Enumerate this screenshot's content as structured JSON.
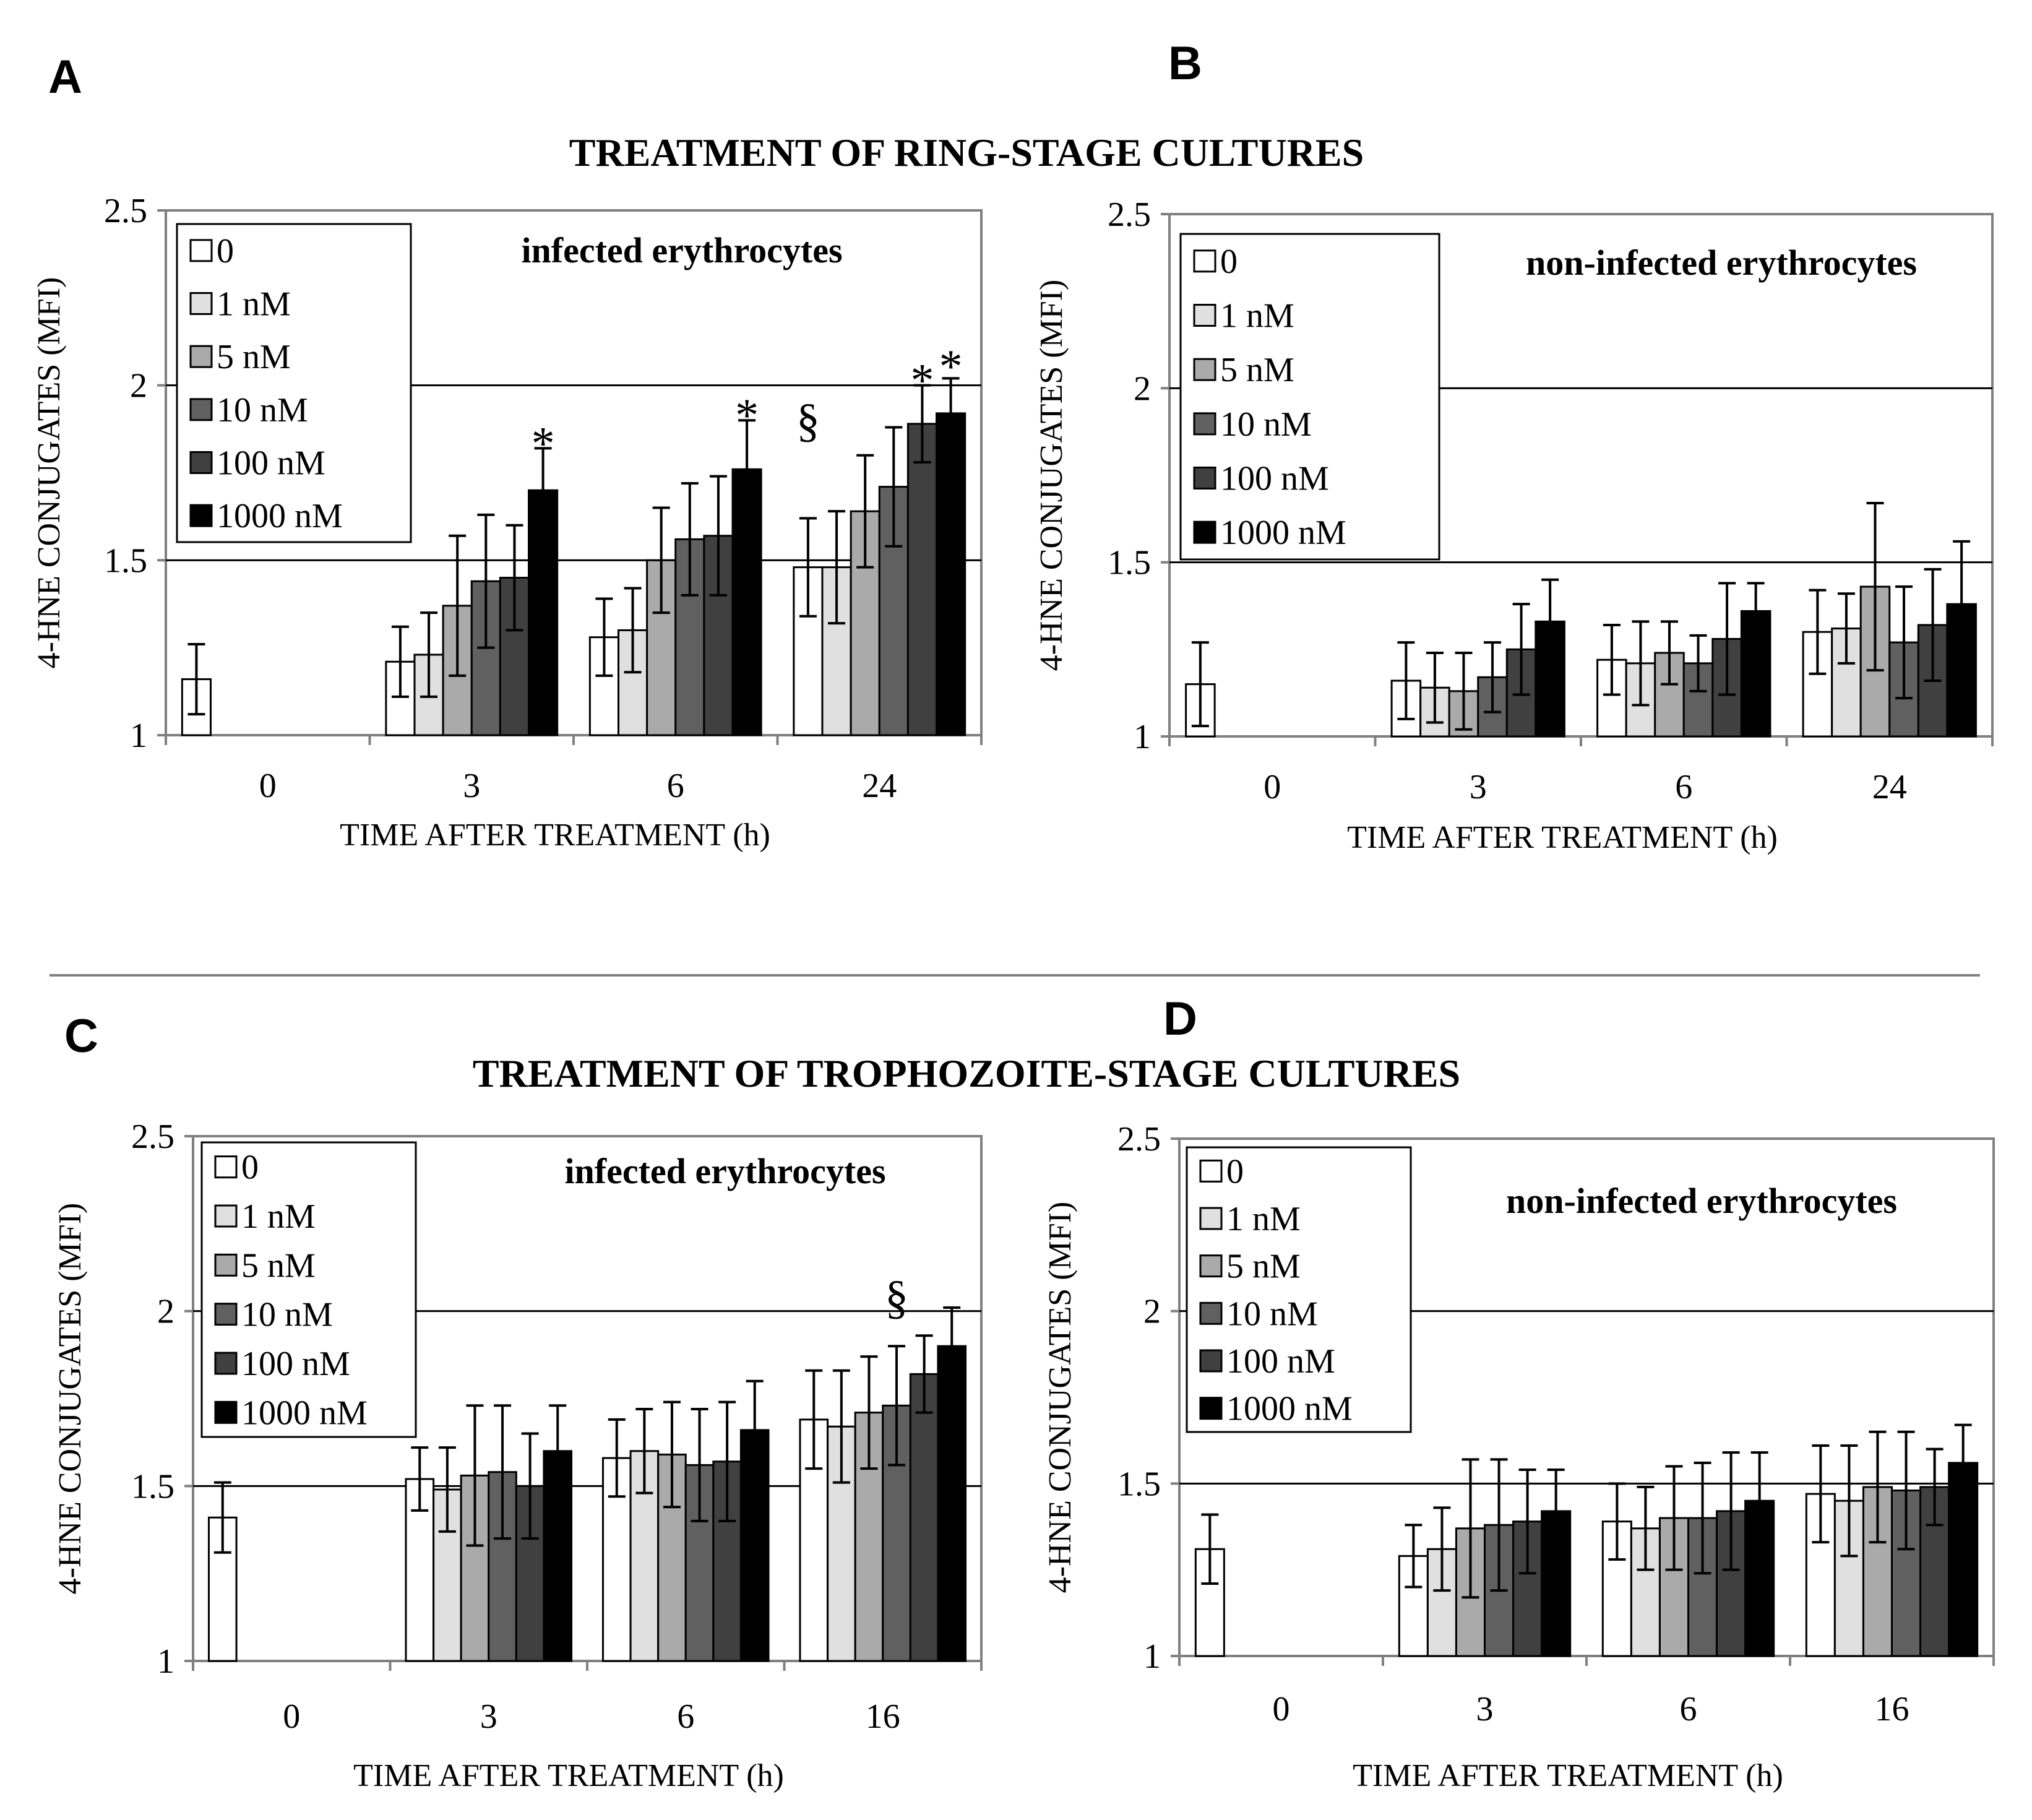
{
  "figure": {
    "letters": [
      "A",
      "B",
      "C",
      "D"
    ],
    "section_titles": [
      "TREATMENT OF RING-STAGE CULTURES",
      "TREATMENT OF TROPHOZOITE-STAGE  CULTURES"
    ]
  },
  "colors": {
    "series": [
      "#ffffff",
      "#e0e0e0",
      "#aaaaaa",
      "#606060",
      "#404040",
      "#000000"
    ],
    "axis": "#808080",
    "bar_stroke": "#000000"
  },
  "chart_data": [
    {
      "type": "bar",
      "title": "infected erythrocytes",
      "xlabel": "TIME AFTER TREATMENT  (h)",
      "ylabel": "4-HNE CONJUGATES  (MFI)",
      "ylim": [
        1,
        2.5
      ],
      "yticks": [
        "1",
        "1.5",
        "2",
        "2.5"
      ],
      "gridlines": [
        1.5,
        2
      ],
      "categories": [
        "0",
        "3",
        "6",
        "24"
      ],
      "legend_position": "top-left",
      "series": [
        {
          "name": "0",
          "values": [
            1.16,
            1.21,
            1.28,
            1.48
          ],
          "errors": [
            0.1,
            0.1,
            0.11,
            0.14
          ]
        },
        {
          "name": "1 nM",
          "values": [
            null,
            1.23,
            1.3,
            1.48
          ],
          "errors": [
            null,
            0.12,
            0.12,
            0.16
          ]
        },
        {
          "name": "5 nM",
          "values": [
            null,
            1.37,
            1.5,
            1.64
          ],
          "errors": [
            null,
            0.2,
            0.15,
            0.16
          ]
        },
        {
          "name": "10 nM",
          "values": [
            null,
            1.44,
            1.56,
            1.71
          ],
          "errors": [
            null,
            0.19,
            0.16,
            0.17
          ]
        },
        {
          "name": "100 nM",
          "values": [
            null,
            1.45,
            1.57,
            1.89
          ],
          "errors": [
            null,
            0.15,
            0.17,
            0.11
          ]
        },
        {
          "name": "1000 nM",
          "values": [
            null,
            1.7,
            1.76,
            1.92
          ],
          "errors": [
            null,
            0.12,
            0.14,
            0.1
          ]
        }
      ],
      "annotations": [
        {
          "text": "*",
          "category": "3",
          "series": "1000 nM",
          "y": 1.86
        },
        {
          "text": "*",
          "category": "6",
          "series": "1000 nM",
          "y": 1.94
        },
        {
          "text": "§",
          "category": "24",
          "series": "0",
          "y": 1.9
        },
        {
          "text": "*",
          "category": "24",
          "series": "100 nM",
          "y": 2.04
        },
        {
          "text": "*",
          "category": "24",
          "series": "1000 nM",
          "y": 2.08
        }
      ]
    },
    {
      "type": "bar",
      "title": "non-infected erythrocytes",
      "xlabel": "TIME AFTER TREATMENT  (h)",
      "ylabel": "4-HNE CONJUGATES  (MFI)",
      "ylim": [
        1,
        2.5
      ],
      "yticks": [
        "1",
        "1.5",
        "2",
        "2.5"
      ],
      "gridlines": [
        1.5,
        2
      ],
      "categories": [
        "0",
        "3",
        "6",
        "24"
      ],
      "legend_position": "top-left",
      "series": [
        {
          "name": "0",
          "values": [
            1.15,
            1.16,
            1.22,
            1.3
          ],
          "errors": [
            0.12,
            0.11,
            0.1,
            0.12
          ]
        },
        {
          "name": "1 nM",
          "values": [
            null,
            1.14,
            1.21,
            1.31
          ],
          "errors": [
            null,
            0.1,
            0.12,
            0.1
          ]
        },
        {
          "name": "5 nM",
          "values": [
            null,
            1.13,
            1.24,
            1.43
          ],
          "errors": [
            null,
            0.11,
            0.09,
            0.24
          ]
        },
        {
          "name": "10 nM",
          "values": [
            null,
            1.17,
            1.21,
            1.27
          ],
          "errors": [
            null,
            0.1,
            0.08,
            0.16
          ]
        },
        {
          "name": "100 nM",
          "values": [
            null,
            1.25,
            1.28,
            1.32
          ],
          "errors": [
            null,
            0.13,
            0.16,
            0.16
          ]
        },
        {
          "name": "1000 nM",
          "values": [
            null,
            1.33,
            1.36,
            1.38
          ],
          "errors": [
            null,
            0.12,
            0.08,
            0.18
          ]
        }
      ],
      "annotations": []
    },
    {
      "type": "bar",
      "title": "infected erythrocytes",
      "xlabel": "TIME AFTER TREATMENT  (h)",
      "ylabel": "4-HNE CONJUGATES  (MFI)",
      "ylim": [
        1,
        2.5
      ],
      "yticks": [
        "1",
        "1.5",
        "2",
        "2.5"
      ],
      "gridlines": [
        1.5,
        2
      ],
      "categories": [
        "0",
        "3",
        "6",
        "16"
      ],
      "legend_position": "top-left",
      "series": [
        {
          "name": "0",
          "values": [
            1.41,
            1.52,
            1.58,
            1.69
          ],
          "errors": [
            0.1,
            0.09,
            0.11,
            0.14
          ]
        },
        {
          "name": "1 nM",
          "values": [
            null,
            1.49,
            1.6,
            1.67
          ],
          "errors": [
            null,
            0.12,
            0.12,
            0.16
          ]
        },
        {
          "name": "5 nM",
          "values": [
            null,
            1.53,
            1.59,
            1.71
          ],
          "errors": [
            null,
            0.2,
            0.15,
            0.16
          ]
        },
        {
          "name": "10 nM",
          "values": [
            null,
            1.54,
            1.56,
            1.73
          ],
          "errors": [
            null,
            0.19,
            0.16,
            0.17
          ]
        },
        {
          "name": "100 nM",
          "values": [
            null,
            1.5,
            1.57,
            1.82
          ],
          "errors": [
            null,
            0.15,
            0.17,
            0.11
          ]
        },
        {
          "name": "1000 nM",
          "values": [
            null,
            1.6,
            1.66,
            1.9
          ],
          "errors": [
            null,
            0.13,
            0.14,
            0.11
          ]
        }
      ],
      "annotations": [
        {
          "text": "§",
          "category": "16",
          "series": "10 nM",
          "y": 2.04
        }
      ]
    },
    {
      "type": "bar",
      "title": "non-infected erythrocytes",
      "xlabel": "TIME AFTER TREATMENT  (h)",
      "ylabel": "4-HNE CONJUGATES  (MFI)",
      "ylim": [
        1,
        2.5
      ],
      "yticks": [
        "1",
        "1.5",
        "2",
        "2.5"
      ],
      "gridlines": [
        1.5,
        2
      ],
      "categories": [
        "0",
        "3",
        "6",
        "16"
      ],
      "legend_position": "top-left",
      "series": [
        {
          "name": "0",
          "values": [
            1.31,
            1.29,
            1.39,
            1.47
          ],
          "errors": [
            0.1,
            0.09,
            0.11,
            0.14
          ]
        },
        {
          "name": "1 nM",
          "values": [
            null,
            1.31,
            1.37,
            1.45
          ],
          "errors": [
            null,
            0.12,
            0.12,
            0.16
          ]
        },
        {
          "name": "5 nM",
          "values": [
            null,
            1.37,
            1.4,
            1.49
          ],
          "errors": [
            null,
            0.2,
            0.15,
            0.16
          ]
        },
        {
          "name": "10 nM",
          "values": [
            null,
            1.38,
            1.4,
            1.48
          ],
          "errors": [
            null,
            0.19,
            0.16,
            0.17
          ]
        },
        {
          "name": "100 nM",
          "values": [
            null,
            1.39,
            1.42,
            1.49
          ],
          "errors": [
            null,
            0.15,
            0.17,
            0.11
          ]
        },
        {
          "name": "1000 nM",
          "values": [
            null,
            1.42,
            1.45,
            1.56
          ],
          "errors": [
            null,
            0.12,
            0.14,
            0.11
          ]
        }
      ],
      "annotations": []
    }
  ]
}
